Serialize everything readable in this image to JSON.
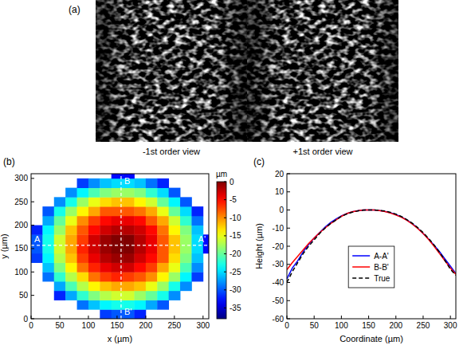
{
  "chart_data": [
    {
      "type": "image",
      "panel": "(a)",
      "views": [
        "-1st order view",
        "+1st order view"
      ]
    },
    {
      "type": "heatmap",
      "panel": "(b)",
      "x_label": "x (µm)",
      "y_label": "y (µm)",
      "x": [
        10,
        30,
        50,
        70,
        90,
        110,
        130,
        150,
        170,
        190,
        210,
        230,
        250,
        270,
        290,
        310
      ],
      "y": [
        10,
        30,
        50,
        70,
        90,
        110,
        130,
        150,
        170,
        190,
        210,
        230,
        250,
        270,
        290,
        310
      ],
      "cells": [
        [
          null,
          null,
          null,
          null,
          null,
          null,
          -31,
          -30,
          -30,
          -32,
          null,
          null,
          null,
          null,
          null,
          null
        ],
        [
          null,
          null,
          null,
          null,
          -29,
          -26,
          -24,
          -23,
          -23,
          -24,
          -27,
          -30,
          null,
          null,
          null,
          null
        ],
        [
          null,
          null,
          -32,
          -27,
          -22,
          -19,
          -17,
          -16,
          -16,
          -18,
          -20,
          -23,
          -28,
          null,
          null,
          null
        ],
        [
          null,
          null,
          -27,
          -21,
          -17,
          -14,
          -12,
          -11,
          -11,
          -12,
          -15,
          -18,
          -23,
          -28,
          null,
          null
        ],
        [
          null,
          -29,
          -22,
          -17,
          -13,
          -9,
          -7,
          -6,
          -7,
          -8,
          -10,
          -14,
          -18,
          -24,
          -31,
          null
        ],
        [
          null,
          -26,
          -19,
          -14,
          -9,
          -6,
          -4,
          -3,
          -3,
          -5,
          -7,
          -11,
          -15,
          -21,
          -28,
          null
        ],
        [
          -31,
          -24,
          -17,
          -12,
          -7,
          -4,
          -2,
          -1,
          -1,
          -3,
          -5,
          -8,
          -13,
          -19,
          -26,
          null
        ],
        [
          -30,
          -23,
          -16,
          -11,
          -6,
          -3,
          -1,
          0,
          0,
          -2,
          -4,
          -8,
          -12,
          -18,
          -25,
          -33
        ],
        [
          -30,
          -23,
          -16,
          -11,
          -7,
          -3,
          -1,
          0,
          0,
          -2,
          -4,
          -8,
          -12,
          -18,
          -25,
          -33
        ],
        [
          -32,
          -24,
          -18,
          -12,
          -8,
          -5,
          -3,
          -2,
          -2,
          -3,
          -5,
          -9,
          -14,
          -19,
          -26,
          null
        ],
        [
          null,
          -27,
          -20,
          -15,
          -10,
          -7,
          -5,
          -4,
          -4,
          -5,
          -8,
          -11,
          -16,
          -22,
          -29,
          null
        ],
        [
          null,
          -30,
          -23,
          -18,
          -14,
          -11,
          -8,
          -8,
          -8,
          -9,
          -11,
          -15,
          -20,
          -25,
          -32,
          null
        ],
        [
          null,
          null,
          -28,
          -23,
          -18,
          -15,
          -13,
          -12,
          -12,
          -14,
          -16,
          -20,
          -24,
          -30,
          null,
          null
        ],
        [
          null,
          null,
          null,
          -28,
          -24,
          -21,
          -19,
          -18,
          -18,
          -19,
          -22,
          -25,
          -30,
          null,
          null,
          null
        ],
        [
          null,
          null,
          null,
          null,
          -31,
          -28,
          -26,
          -25,
          -25,
          -26,
          -29,
          -32,
          null,
          null,
          null,
          null
        ],
        [
          null,
          null,
          null,
          null,
          null,
          null,
          null,
          -33,
          -33,
          null,
          null,
          null,
          null,
          null,
          null,
          null
        ]
      ],
      "xlim": [
        0,
        310
      ],
      "xticks": [
        0,
        50,
        100,
        150,
        200,
        250,
        300
      ],
      "ylim": [
        0,
        310
      ],
      "yticks": [
        0,
        50,
        100,
        150,
        200,
        250,
        300
      ],
      "colorbar": {
        "label": "µm",
        "lim": [
          -38,
          0
        ],
        "ticks": [
          -35,
          -30,
          -25,
          -20,
          -15,
          -10,
          -5,
          0
        ]
      },
      "cuts": [
        {
          "label_start": "A",
          "label_end": "A'",
          "y": 157
        },
        {
          "label_start": "B",
          "label_end": "B'",
          "x": 157
        }
      ]
    },
    {
      "type": "line",
      "panel": "(c)",
      "x_label": "Coordinate (µm)",
      "y_label": "Height (µm)",
      "x": [
        0,
        10,
        20,
        30,
        40,
        50,
        60,
        70,
        80,
        90,
        100,
        110,
        120,
        130,
        140,
        150,
        160,
        170,
        180,
        190,
        200,
        210,
        220,
        230,
        240,
        250,
        260,
        270,
        280,
        290,
        300,
        310
      ],
      "series": [
        {
          "name": "A-A'",
          "color": "#0000ff",
          "line_style": "solid",
          "values": [
            -38,
            -32,
            -28,
            -23,
            -19,
            -15.5,
            -12.5,
            -9.5,
            -7,
            -5,
            -3.3,
            -2,
            -1,
            -0.4,
            0,
            0,
            0,
            -0.3,
            -0.8,
            -1.5,
            -2.5,
            -3.8,
            -5.5,
            -7.5,
            -10,
            -13,
            -16,
            -19.5,
            -23,
            -27,
            -31,
            -35
          ]
        },
        {
          "name": "B-B'",
          "color": "#ff0000",
          "line_style": "solid",
          "values": [
            -33,
            -29,
            -25.5,
            -22,
            -18.5,
            -15.5,
            -12.5,
            -10,
            -7.5,
            -5.5,
            -3.5,
            -2,
            -1,
            -0.4,
            0,
            0,
            0,
            -0.3,
            -0.9,
            -1.7,
            -2.8,
            -4,
            -5.7,
            -7.8,
            -10.2,
            -13,
            -16.3,
            -20,
            -24,
            -28,
            -32,
            -35.5
          ]
        },
        {
          "name": "True",
          "color": "#000000",
          "line_style": "dashed",
          "values": [
            -40,
            -34,
            -29,
            -24,
            -20,
            -16.5,
            -13,
            -10,
            -7.5,
            -5.5,
            -3.5,
            -2.2,
            -1.2,
            -0.5,
            -0.1,
            0,
            0,
            -0.2,
            -0.6,
            -1.3,
            -2.3,
            -3.6,
            -5.3,
            -7.3,
            -9.7,
            -12.5,
            -15.7,
            -19.3,
            -23.3,
            -27.8,
            -32.7,
            -36
          ]
        }
      ],
      "xlim": [
        0,
        310
      ],
      "xticks": [
        0,
        50,
        100,
        150,
        200,
        250,
        300
      ],
      "ylim": [
        -60,
        20
      ],
      "yticks": [
        -60,
        -50,
        -40,
        -30,
        -20,
        -10,
        0,
        10,
        20
      ],
      "legend": "center"
    }
  ]
}
